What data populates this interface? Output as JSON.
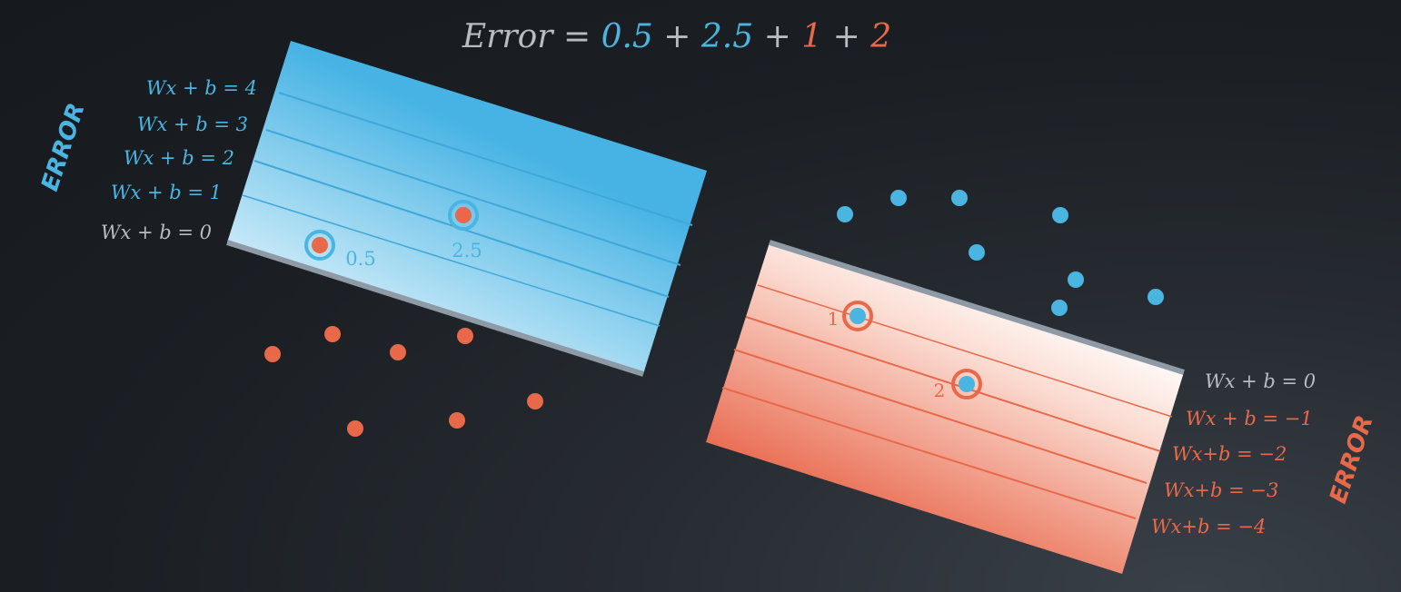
{
  "equation": {
    "lhs": "Error",
    "eq": " = ",
    "terms": [
      {
        "value": "0.5",
        "color": "#4ab5e0"
      },
      {
        "value": "2.5",
        "color": "#4ab5e0"
      },
      {
        "value": "1",
        "color": "#e8694a"
      },
      {
        "value": "2",
        "color": "#e8694a"
      }
    ],
    "plus": " + "
  },
  "colors": {
    "blue": "#4ab5e0",
    "orange": "#e8694a",
    "gray": "#b8bcc2"
  },
  "blue_region": {
    "side_label": "ERROR",
    "lines": [
      {
        "text": "Wx + b = 4"
      },
      {
        "text": "Wx + b = 3"
      },
      {
        "text": "Wx + b = 2"
      },
      {
        "text": "Wx + b = 1"
      },
      {
        "text": "Wx + b = 0"
      }
    ],
    "misclassified": [
      {
        "error": "0.5"
      },
      {
        "error": "2.5"
      }
    ]
  },
  "orange_region": {
    "side_label": "ERROR",
    "lines": [
      {
        "text": "Wx + b = 0"
      },
      {
        "text": "Wx + b = −1"
      },
      {
        "text": "Wx+b = −2"
      },
      {
        "text": "Wx+b = −3"
      },
      {
        "text": "Wx+b = −4"
      }
    ],
    "misclassified": [
      {
        "error": "1"
      },
      {
        "error": "2"
      }
    ]
  }
}
